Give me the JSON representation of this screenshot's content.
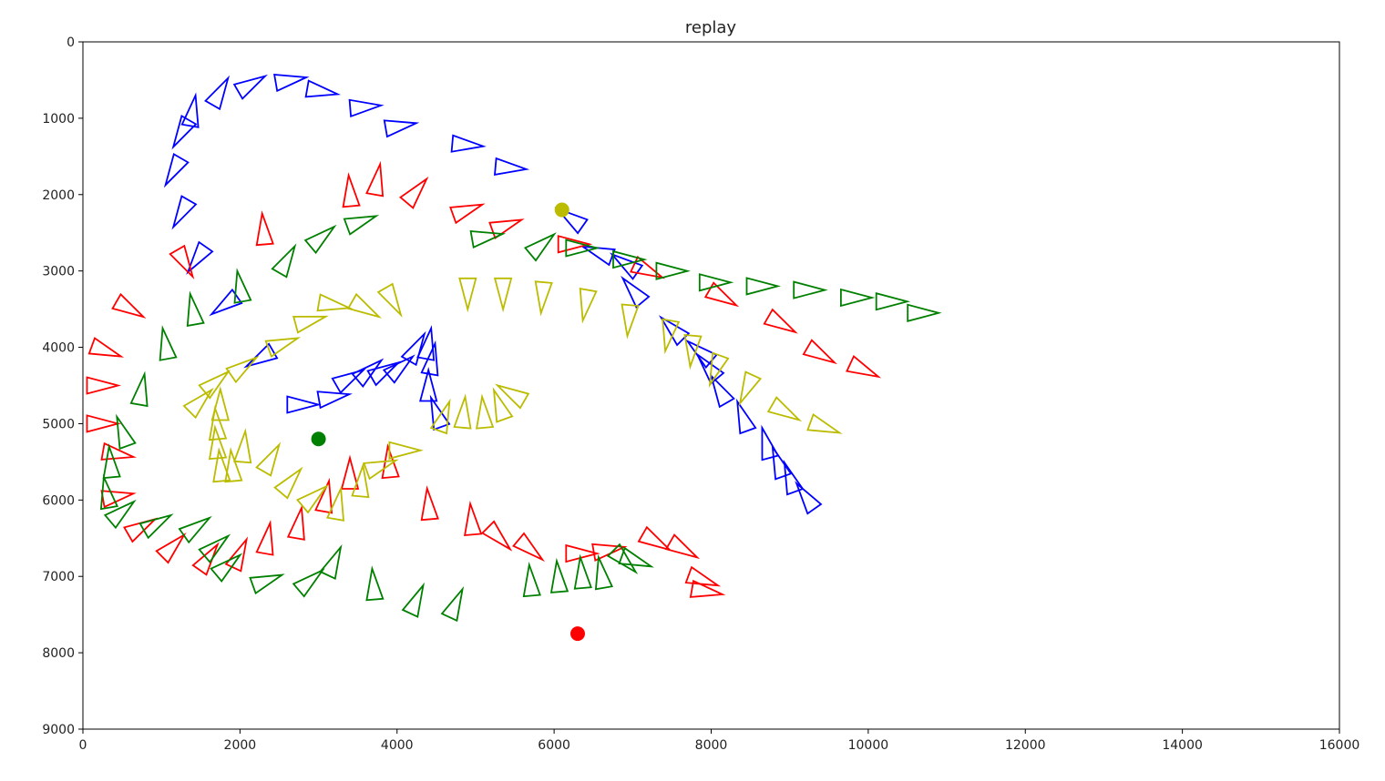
{
  "chart_data": {
    "type": "scatter",
    "title": "replay",
    "xlabel": "",
    "ylabel": "",
    "xlim": [
      0,
      16000
    ],
    "ylim": [
      0,
      9000
    ],
    "y_inverted": true,
    "grid": false,
    "xticks": [
      "0",
      "2000",
      "4000",
      "6000",
      "8000",
      "10000",
      "12000",
      "14000",
      "16000"
    ],
    "yticks": [
      "0",
      "1000",
      "2000",
      "3000",
      "4000",
      "5000",
      "6000",
      "7000",
      "8000",
      "9000"
    ],
    "marker": "hollow triangle, pointing along heading",
    "series": [
      {
        "color": "#0000ff",
        "points": [
          [
            1400,
            900,
            -80
          ],
          [
            1750,
            650,
            -60
          ],
          [
            2150,
            550,
            -30
          ],
          [
            2650,
            500,
            -10
          ],
          [
            3050,
            650,
            10
          ],
          [
            3600,
            850,
            -5
          ],
          [
            4050,
            1100,
            -10
          ],
          [
            4900,
            1350,
            5
          ],
          [
            5450,
            1650,
            5
          ],
          [
            1250,
            1200,
            120
          ],
          [
            1150,
            1700,
            120
          ],
          [
            1250,
            2250,
            120
          ],
          [
            1450,
            2850,
            125
          ],
          [
            1800,
            3450,
            145
          ],
          [
            2250,
            4150,
            150
          ],
          [
            6200,
            2300,
            215
          ],
          [
            6550,
            2750,
            200
          ],
          [
            6900,
            2900,
            215
          ],
          [
            7000,
            3250,
            230
          ],
          [
            7500,
            3750,
            225
          ],
          [
            7850,
            4050,
            220
          ],
          [
            7950,
            4250,
            230
          ],
          [
            8100,
            4550,
            240
          ],
          [
            8400,
            4900,
            250
          ],
          [
            8700,
            5250,
            255
          ],
          [
            8850,
            5500,
            250
          ],
          [
            9000,
            5700,
            250
          ],
          [
            9200,
            5950,
            235
          ],
          [
            2800,
            4750,
            0
          ],
          [
            3200,
            4650,
            -10
          ],
          [
            3400,
            4400,
            -30
          ],
          [
            3650,
            4300,
            -40
          ],
          [
            3850,
            4300,
            -30
          ],
          [
            4050,
            4250,
            -40
          ],
          [
            4250,
            4000,
            -60
          ],
          [
            4400,
            3950,
            -80
          ],
          [
            4450,
            4150,
            -80
          ],
          [
            4400,
            4500,
            -90
          ],
          [
            4500,
            4850,
            -110
          ]
        ]
      },
      {
        "color": "#ff0000",
        "points": [
          [
            600,
            3500,
            30
          ],
          [
            300,
            4050,
            20
          ],
          [
            250,
            4500,
            0
          ],
          [
            250,
            5000,
            0
          ],
          [
            450,
            5400,
            10
          ],
          [
            450,
            5950,
            -10
          ],
          [
            750,
            6350,
            -30
          ],
          [
            1150,
            6600,
            -45
          ],
          [
            1600,
            6750,
            -55
          ],
          [
            2000,
            6700,
            -65
          ],
          [
            2350,
            6500,
            -80
          ],
          [
            2750,
            6300,
            -80
          ],
          [
            3100,
            5950,
            -80
          ],
          [
            3400,
            5650,
            -90
          ],
          [
            3900,
            5500,
            -95
          ],
          [
            4400,
            6050,
            -95
          ],
          [
            4950,
            6250,
            -95
          ],
          [
            5300,
            6500,
            45
          ],
          [
            5700,
            6650,
            40
          ],
          [
            6350,
            6700,
            0
          ],
          [
            6700,
            6650,
            -10
          ],
          [
            7300,
            6550,
            30
          ],
          [
            7650,
            6650,
            30
          ],
          [
            7900,
            7050,
            20
          ],
          [
            7950,
            7200,
            10
          ],
          [
            1300,
            2900,
            60
          ],
          [
            2300,
            2450,
            -95
          ],
          [
            3400,
            1950,
            -95
          ],
          [
            3750,
            1800,
            -80
          ],
          [
            4250,
            1950,
            -50
          ],
          [
            4900,
            2200,
            -20
          ],
          [
            5400,
            2400,
            -20
          ],
          [
            6250,
            2650,
            0
          ],
          [
            7200,
            3000,
            25
          ],
          [
            8150,
            3350,
            30
          ],
          [
            8900,
            3700,
            30
          ],
          [
            9400,
            4100,
            30
          ],
          [
            9950,
            4300,
            25
          ]
        ]
      },
      {
        "color": "#008000",
        "points": [
          [
            2000,
            3200,
            -100
          ],
          [
            2600,
            2850,
            -60
          ],
          [
            3050,
            2550,
            -40
          ],
          [
            3550,
            2350,
            -20
          ],
          [
            5150,
            2550,
            -10
          ],
          [
            5850,
            2650,
            -40
          ],
          [
            6350,
            2700,
            0
          ],
          [
            6950,
            2850,
            0
          ],
          [
            7500,
            3000,
            0
          ],
          [
            8050,
            3150,
            0
          ],
          [
            8650,
            3200,
            0
          ],
          [
            9250,
            3250,
            0
          ],
          [
            9850,
            3350,
            0
          ],
          [
            10300,
            3400,
            0
          ],
          [
            10700,
            3550,
            0
          ],
          [
            1400,
            3500,
            -100
          ],
          [
            1050,
            3950,
            -100
          ],
          [
            750,
            4550,
            -80
          ],
          [
            500,
            5100,
            -110
          ],
          [
            350,
            5500,
            -95
          ],
          [
            300,
            5900,
            -100
          ],
          [
            500,
            6150,
            -40
          ],
          [
            950,
            6300,
            -30
          ],
          [
            1450,
            6350,
            -35
          ],
          [
            1700,
            6600,
            -40
          ],
          [
            1850,
            6850,
            -40
          ],
          [
            2350,
            7050,
            -20
          ],
          [
            2900,
            7050,
            -40
          ],
          [
            3200,
            6800,
            -65
          ],
          [
            3700,
            7100,
            -95
          ],
          [
            4250,
            7300,
            -65
          ],
          [
            4750,
            7350,
            -65
          ],
          [
            5700,
            7050,
            -95
          ],
          [
            6050,
            7000,
            -95
          ],
          [
            6350,
            6950,
            -95
          ],
          [
            6600,
            6950,
            -100
          ],
          [
            6900,
            6800,
            45
          ],
          [
            7050,
            6800,
            20
          ]
        ]
      },
      {
        "color": "#bbbb00",
        "points": [
          [
            1700,
            4450,
            -40
          ],
          [
            2050,
            4250,
            -35
          ],
          [
            2550,
            3950,
            -20
          ],
          [
            2900,
            3650,
            -15
          ],
          [
            3200,
            3450,
            10
          ],
          [
            3600,
            3500,
            30
          ],
          [
            3950,
            3400,
            60
          ],
          [
            4900,
            3300,
            90
          ],
          [
            5350,
            3300,
            90
          ],
          [
            5850,
            3350,
            95
          ],
          [
            6400,
            3450,
            100
          ],
          [
            6950,
            3650,
            95
          ],
          [
            7450,
            3850,
            100
          ],
          [
            7750,
            4050,
            95
          ],
          [
            8050,
            4300,
            110
          ],
          [
            8450,
            4550,
            115
          ],
          [
            8950,
            4850,
            30
          ],
          [
            9450,
            5050,
            20
          ],
          [
            1500,
            4700,
            -45
          ],
          [
            1750,
            4750,
            -90
          ],
          [
            1700,
            5000,
            -95
          ],
          [
            1700,
            5250,
            -95
          ],
          [
            1750,
            5550,
            -95
          ],
          [
            1900,
            5550,
            -95
          ],
          [
            2050,
            5300,
            -85
          ],
          [
            2400,
            5450,
            -60
          ],
          [
            2650,
            5750,
            -50
          ],
          [
            2950,
            5950,
            -40
          ],
          [
            3250,
            6050,
            -80
          ],
          [
            3550,
            5750,
            -85
          ],
          [
            3800,
            5550,
            -20
          ],
          [
            4100,
            5350,
            0
          ],
          [
            4600,
            4900,
            -70
          ],
          [
            4850,
            4850,
            -85
          ],
          [
            5100,
            4850,
            -95
          ],
          [
            5300,
            4750,
            -110
          ],
          [
            5450,
            4600,
            -150
          ]
        ]
      }
    ],
    "dots": [
      {
        "x": 3000,
        "y": 5200,
        "color": "#008000"
      },
      {
        "x": 6100,
        "y": 2200,
        "color": "#bbbb00"
      },
      {
        "x": 6300,
        "y": 7750,
        "color": "#ff0000"
      }
    ]
  }
}
